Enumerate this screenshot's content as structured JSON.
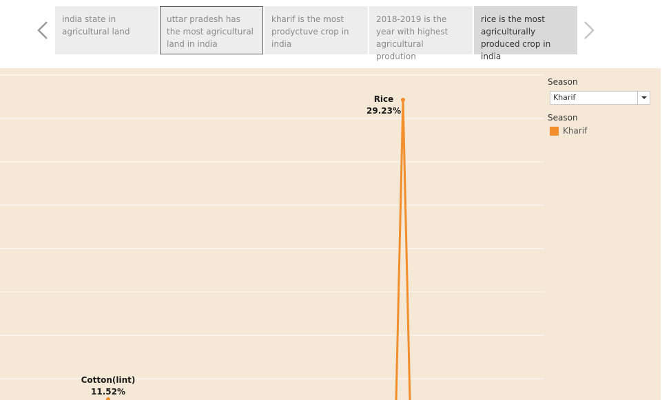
{
  "story": {
    "points": [
      {
        "caption": "india state in agricultural land"
      },
      {
        "caption": "uttar pradesh has the most agricultural land in india"
      },
      {
        "caption": "kharif is the most prodyctuve crop in india"
      },
      {
        "caption": "2018-2019 is the year with highest agricultural prodution"
      },
      {
        "caption": "rice is the most agriculturally produced crop in india"
      }
    ],
    "prev_icon": "chevron-left-icon",
    "next_icon": "chevron-right-icon"
  },
  "filter": {
    "title": "Season",
    "selected": "Kharif",
    "dropdown_icon": "caret-down-icon"
  },
  "legend": {
    "title": "Season",
    "items": [
      {
        "label": "Kharif",
        "color": "#f28e2b"
      }
    ]
  },
  "colors": {
    "background": "#f5e8d7",
    "line": "#f28e2b"
  },
  "chart_data": {
    "type": "line",
    "series": [
      {
        "name": "Kharif",
        "color": "#f28e2b"
      }
    ],
    "labeled_points": [
      {
        "crop": "Rice",
        "value_label": "29.23%",
        "value": 29.23
      },
      {
        "crop": "Cotton(lint)",
        "value_label": "11.52%",
        "value": 11.52
      }
    ],
    "grid": true,
    "legend_position": "right"
  }
}
